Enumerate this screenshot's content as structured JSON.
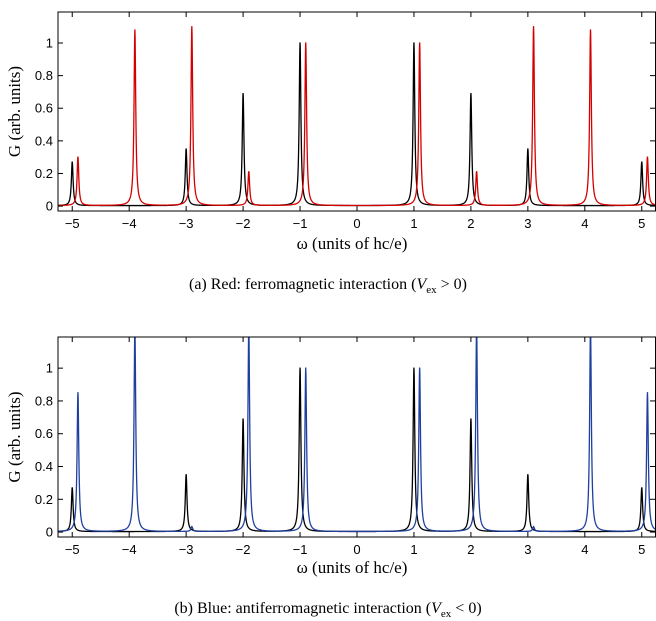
{
  "chart_data": [
    {
      "type": "line",
      "panel": "a",
      "xlabel": "ω (units of hc/e)",
      "ylabel": "G (arb. units)",
      "xlim": [
        -5.25,
        5.25
      ],
      "ylim": [
        -0.03,
        1.19
      ],
      "xticks": [
        "−5",
        "−4",
        "−3",
        "−2",
        "−1",
        "0",
        "1",
        "2",
        "3",
        "4",
        "5"
      ],
      "yticks": [
        "0",
        "0.2",
        "0.4",
        "0.6",
        "0.8",
        "1"
      ],
      "grid": false,
      "colors": {
        "black": "#000000",
        "red": "#d40000"
      },
      "series": [
        {
          "color": "#000000",
          "peaks": [
            {
              "x": -5.0,
              "y": 0.27
            },
            {
              "x": -3.0,
              "y": 0.35
            },
            {
              "x": -2.0,
              "y": 0.69
            },
            {
              "x": -1.0,
              "y": 1.0
            },
            {
              "x": 1.0,
              "y": 1.0
            },
            {
              "x": 2.0,
              "y": 0.69
            },
            {
              "x": 3.0,
              "y": 0.35
            },
            {
              "x": 5.0,
              "y": 0.27
            }
          ]
        },
        {
          "color": "#d40000",
          "peaks": [
            {
              "x": -4.9,
              "y": 0.3
            },
            {
              "x": -3.9,
              "y": 1.08
            },
            {
              "x": -2.9,
              "y": 1.1
            },
            {
              "x": -1.9,
              "y": 0.21
            },
            {
              "x": -0.9,
              "y": 1.0
            },
            {
              "x": 1.1,
              "y": 1.0
            },
            {
              "x": 2.1,
              "y": 0.21
            },
            {
              "x": 3.1,
              "y": 1.1
            },
            {
              "x": 4.1,
              "y": 1.08
            },
            {
              "x": 5.1,
              "y": 0.3
            }
          ]
        }
      ],
      "caption": {
        "prefix": "(a) Red:  ferromagnetic interaction (",
        "var": "V",
        "sub": "ex",
        "suffix": " > 0)"
      }
    },
    {
      "type": "line",
      "panel": "b",
      "xlabel": "ω (units of hc/e)",
      "ylabel": "G (arb. units)",
      "xlim": [
        -5.25,
        5.25
      ],
      "ylim": [
        -0.03,
        1.19
      ],
      "xticks": [
        "−5",
        "−4",
        "−3",
        "−2",
        "−1",
        "0",
        "1",
        "2",
        "3",
        "4",
        "5"
      ],
      "yticks": [
        "0",
        "0.2",
        "0.4",
        "0.6",
        "0.8",
        "1"
      ],
      "grid": false,
      "colors": {
        "black": "#000000",
        "blue": "#1f3f9f"
      },
      "series": [
        {
          "color": "#000000",
          "peaks": [
            {
              "x": -5.0,
              "y": 0.27
            },
            {
              "x": -3.0,
              "y": 0.35
            },
            {
              "x": -2.0,
              "y": 0.69
            },
            {
              "x": -1.0,
              "y": 1.0
            },
            {
              "x": 1.0,
              "y": 1.0
            },
            {
              "x": 2.0,
              "y": 0.69
            },
            {
              "x": 3.0,
              "y": 0.35
            },
            {
              "x": 5.0,
              "y": 0.27
            }
          ]
        },
        {
          "color": "#1f3f9f",
          "peaks": [
            {
              "x": -4.9,
              "y": 0.85
            },
            {
              "x": -3.9,
              "y": 1.25
            },
            {
              "x": -2.9,
              "y": 0.03
            },
            {
              "x": -1.9,
              "y": 1.25
            },
            {
              "x": -0.9,
              "y": 1.0
            },
            {
              "x": 1.1,
              "y": 1.0
            },
            {
              "x": 2.1,
              "y": 1.25
            },
            {
              "x": 3.1,
              "y": 0.03
            },
            {
              "x": 4.1,
              "y": 1.25
            },
            {
              "x": 5.1,
              "y": 0.85
            }
          ]
        }
      ],
      "caption": {
        "prefix": "(b) Blue:  antiferromagnetic interaction (",
        "var": "V",
        "sub": "ex",
        "suffix": " < 0)"
      }
    }
  ]
}
